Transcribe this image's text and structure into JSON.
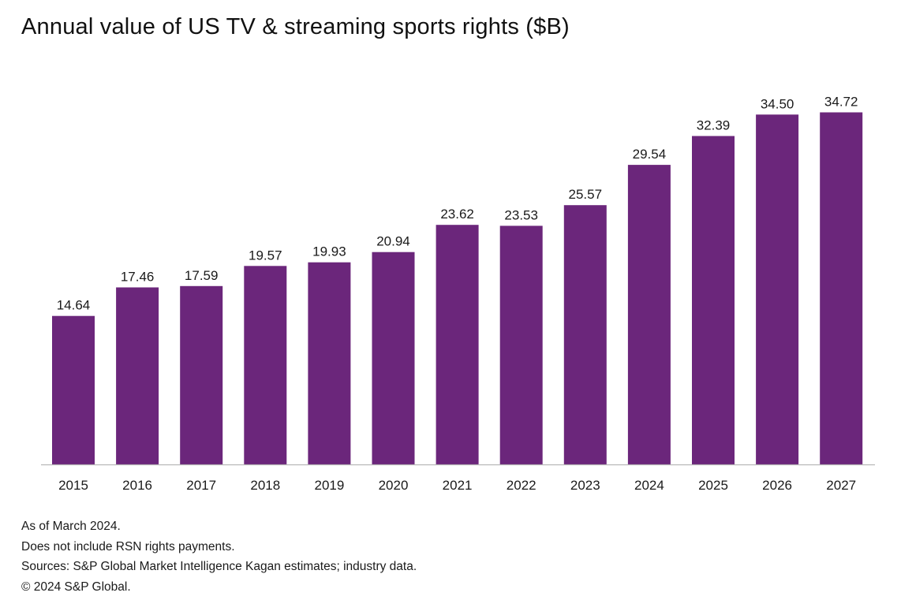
{
  "title": "Annual value of US TV & streaming sports rights ($B)",
  "colors": {
    "bar": "#6b267b",
    "axis": "#b8b8b8",
    "background": "#ffffff"
  },
  "chart_data": {
    "type": "bar",
    "title": "Annual value of US TV & streaming sports rights ($B)",
    "xlabel": "",
    "ylabel": "",
    "categories": [
      "2015",
      "2016",
      "2017",
      "2018",
      "2019",
      "2020",
      "2021",
      "2022",
      "2023",
      "2024",
      "2025",
      "2026",
      "2027"
    ],
    "values": [
      14.64,
      17.46,
      17.59,
      19.57,
      19.93,
      20.94,
      23.62,
      23.53,
      25.57,
      29.54,
      32.39,
      34.5,
      34.72
    ],
    "value_labels": [
      "14.64",
      "17.46",
      "17.59",
      "19.57",
      "19.93",
      "20.94",
      "23.62",
      "23.53",
      "25.57",
      "29.54",
      "32.39",
      "34.50",
      "34.72"
    ],
    "ylim": [
      0,
      35
    ],
    "grid": false,
    "legend": "none"
  },
  "notes": [
    "As of March 2024.",
    "Does not include RSN rights payments.",
    "Sources: S&P Global Market Intelligence Kagan estimates; industry data.",
    "© 2024 S&P Global."
  ]
}
